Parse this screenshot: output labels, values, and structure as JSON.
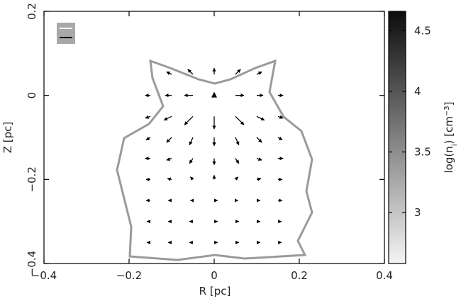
{
  "chart_data": {
    "type": "quiver",
    "xlabel": "R [pc]",
    "ylabel": "Z [pc]",
    "xlim": [
      -0.4,
      0.4
    ],
    "xticks": [
      {
        "value": -0.4,
        "label": "−0.4"
      },
      {
        "value": -0.2,
        "label": "−0.2"
      },
      0,
      0.2,
      0.4
    ],
    "ylim": [
      -0.4,
      0.2
    ],
    "yticks": [
      {
        "value": -0.4,
        "label": "−0.4"
      },
      {
        "value": -0.2,
        "label": "−0.2"
      },
      0,
      0.2
    ],
    "source": {
      "x": 0,
      "y": 0
    },
    "vectors": {
      "x": [
        -0.1,
        -0.05,
        0,
        0.05,
        0.1,
        -0.15,
        -0.1,
        -0.05,
        0.05,
        0.1,
        0.15,
        -0.15,
        -0.1,
        -0.05,
        0,
        0.05,
        0.1,
        0.15,
        -0.15,
        -0.1,
        -0.05,
        0,
        0.05,
        0.1,
        0.15,
        -0.15,
        -0.1,
        -0.05,
        0,
        0.05,
        0.1,
        0.15,
        -0.15,
        -0.1,
        -0.05,
        0,
        0.05,
        0.1,
        0.15,
        -0.15,
        -0.1,
        -0.05,
        0,
        0.05,
        0.1,
        0.15,
        -0.15,
        -0.1,
        -0.05,
        0,
        0.05,
        0.1,
        0.15,
        -0.15,
        -0.1,
        -0.05,
        0,
        0.05,
        0.1,
        0.15
      ],
      "y": [
        0.05,
        0.05,
        0.05,
        0.05,
        0.05,
        0,
        0,
        0,
        0,
        0,
        0,
        -0.05,
        -0.05,
        -0.05,
        -0.05,
        -0.05,
        -0.05,
        -0.05,
        -0.1,
        -0.1,
        -0.1,
        -0.1,
        -0.1,
        -0.1,
        -0.1,
        -0.15,
        -0.15,
        -0.15,
        -0.15,
        -0.15,
        -0.15,
        -0.15,
        -0.2,
        -0.2,
        -0.2,
        -0.2,
        -0.2,
        -0.2,
        -0.2,
        -0.25,
        -0.25,
        -0.25,
        -0.25,
        -0.25,
        -0.25,
        -0.25,
        -0.3,
        -0.3,
        -0.3,
        -0.3,
        -0.3,
        -0.3,
        -0.3,
        -0.35,
        -0.35,
        -0.35,
        -0.35,
        -0.35,
        -0.35,
        -0.35
      ],
      "u": [
        -0.012,
        -0.012,
        0,
        0.012,
        0.012,
        -0.012,
        -0.015,
        -0.02,
        0.02,
        0.015,
        0.012,
        -0.012,
        -0.018,
        -0.02,
        0,
        0.02,
        0.018,
        0.012,
        -0.01,
        -0.012,
        -0.008,
        0,
        0.008,
        0.012,
        0.01,
        -0.012,
        -0.012,
        -0.008,
        0,
        0.008,
        0.012,
        0.012,
        -0.01,
        -0.01,
        -0.006,
        0,
        0.006,
        0.01,
        0.01,
        -0.01,
        -0.008,
        -0.006,
        0.008,
        0.006,
        0.008,
        0.01,
        -0.008,
        -0.008,
        -0.008,
        0.008,
        0.008,
        0.008,
        0.008,
        -0.008,
        -0.008,
        -0.008,
        0.008,
        0.008,
        0.008,
        0.008
      ],
      "v": [
        0.006,
        0.012,
        0.015,
        0.012,
        0.006,
        0,
        0,
        0,
        0,
        0,
        0,
        -0.004,
        -0.009,
        -0.02,
        -0.03,
        -0.02,
        -0.009,
        -0.004,
        -0.006,
        -0.012,
        -0.018,
        -0.02,
        -0.018,
        -0.012,
        -0.006,
        0,
        -0.004,
        -0.012,
        -0.015,
        -0.012,
        -0.004,
        0,
        0,
        0.002,
        0.006,
        0.01,
        0.006,
        0.002,
        0,
        0,
        0,
        0,
        0,
        0,
        0,
        0,
        0,
        0,
        0,
        0,
        0,
        0,
        0,
        0,
        0,
        0,
        0,
        0,
        0,
        0
      ],
      "color": "#000000"
    },
    "colorbar": {
      "label_parts": [
        "log(n",
        "i",
        ") [cm",
        "−3",
        "]"
      ],
      "clim": [
        2.58,
        4.66
      ],
      "cticks": [
        3,
        3.5,
        4,
        4.5
      ],
      "colormap": [
        "#f4f4f4",
        "#0c0c0c"
      ]
    }
  }
}
